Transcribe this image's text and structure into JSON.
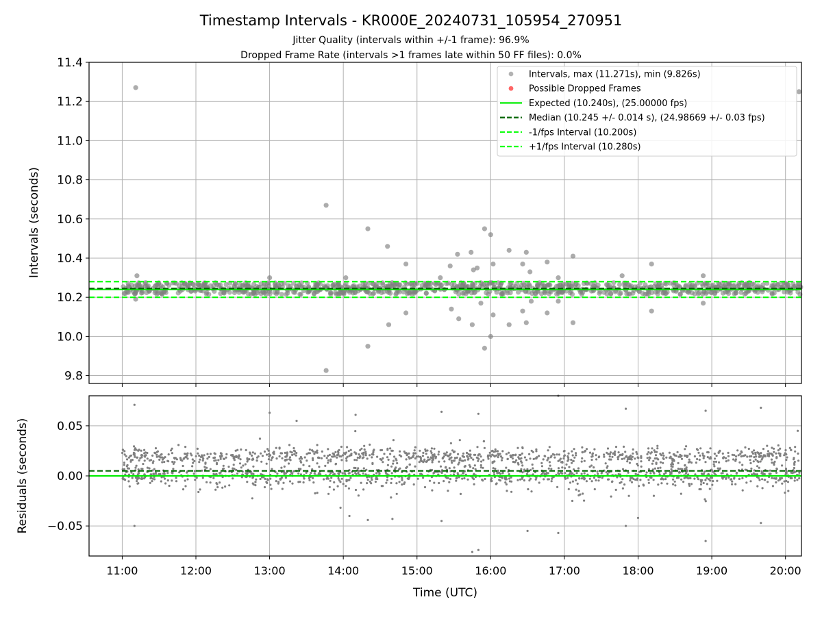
{
  "title": "Timestamp Intervals - KR000E_20240731_105954_270951",
  "subtitle_lines": [
    "Jitter Quality (intervals within +/-1 frame): 96.9%",
    "Dropped Frame Rate (intervals >1 frames late within 50 FF files): 0.0%"
  ],
  "colors": {
    "points": "#808080",
    "dropped": "#ff0000",
    "expected": "#00ee00",
    "median": "#006400",
    "interval": "#00ff00",
    "grid": "#b0b0b0"
  },
  "chart_data": [
    {
      "type": "scatter",
      "panel": "top",
      "ylabel": "Intervals (seconds)",
      "xlim": [
        "10:33",
        "20:13"
      ],
      "ylim": [
        9.76,
        11.4
      ],
      "yticks": [
        9.8,
        10.0,
        10.2,
        10.4,
        10.6,
        10.8,
        11.0,
        11.2,
        11.4
      ],
      "ytick_labels": [
        "9.8",
        "10.0",
        "10.2",
        "10.4",
        "10.6",
        "10.8",
        "11.0",
        "11.2",
        "11.4"
      ],
      "grid": true,
      "legend_position": "top-right",
      "legend": [
        {
          "label": "Intervals, max (11.271s), min (9.826s)",
          "kind": "point",
          "color": "#808080"
        },
        {
          "label": "Possible Dropped Frames",
          "kind": "point",
          "color": "#ff0000"
        },
        {
          "label": "Expected (10.240s), (25.00000 fps)",
          "kind": "line",
          "dash": "solid",
          "color": "#00ee00"
        },
        {
          "label": "Median (10.245 +/- 0.014 s), (24.98669 +/- 0.03 fps)",
          "kind": "line",
          "dash": "dashed",
          "color": "#006400"
        },
        {
          "label": "-1/fps Interval (10.200s)",
          "kind": "line",
          "dash": "dashed",
          "color": "#00ff00"
        },
        {
          "label": "+1/fps Interval (10.280s)",
          "kind": "line",
          "dash": "dashed",
          "color": "#00ff00"
        }
      ],
      "hlines": {
        "expected": 10.24,
        "median": 10.245,
        "minus_fps": 10.2,
        "plus_fps": 10.28
      },
      "band": {
        "center": 10.245,
        "spread": 0.03,
        "from": "11:00",
        "to": "20:13"
      },
      "outliers": [
        {
          "x": "11:11",
          "y": 11.271
        },
        {
          "x": "11:12",
          "y": 10.31
        },
        {
          "x": "11:11",
          "y": 10.19
        },
        {
          "x": "13:00",
          "y": 10.3
        },
        {
          "x": "13:46",
          "y": 10.67
        },
        {
          "x": "13:46",
          "y": 9.826
        },
        {
          "x": "14:20",
          "y": 10.55
        },
        {
          "x": "14:20",
          "y": 9.95
        },
        {
          "x": "14:02",
          "y": 10.3
        },
        {
          "x": "14:36",
          "y": 10.46
        },
        {
          "x": "14:37",
          "y": 10.06
        },
        {
          "x": "14:51",
          "y": 10.37
        },
        {
          "x": "14:51",
          "y": 10.12
        },
        {
          "x": "15:19",
          "y": 10.3
        },
        {
          "x": "15:27",
          "y": 10.36
        },
        {
          "x": "15:28",
          "y": 10.14
        },
        {
          "x": "15:33",
          "y": 10.42
        },
        {
          "x": "15:34",
          "y": 10.09
        },
        {
          "x": "15:45",
          "y": 10.06
        },
        {
          "x": "15:44",
          "y": 10.43
        },
        {
          "x": "15:46",
          "y": 10.34
        },
        {
          "x": "15:49",
          "y": 10.35
        },
        {
          "x": "15:52",
          "y": 10.17
        },
        {
          "x": "15:55",
          "y": 10.55
        },
        {
          "x": "15:55",
          "y": 9.94
        },
        {
          "x": "16:00",
          "y": 10.52
        },
        {
          "x": "16:00",
          "y": 10.0
        },
        {
          "x": "16:02",
          "y": 10.37
        },
        {
          "x": "16:02",
          "y": 10.11
        },
        {
          "x": "16:15",
          "y": 10.44
        },
        {
          "x": "16:15",
          "y": 10.06
        },
        {
          "x": "16:26",
          "y": 10.37
        },
        {
          "x": "16:26",
          "y": 10.13
        },
        {
          "x": "16:29",
          "y": 10.43
        },
        {
          "x": "16:29",
          "y": 10.07
        },
        {
          "x": "16:32",
          "y": 10.33
        },
        {
          "x": "16:33",
          "y": 10.18
        },
        {
          "x": "16:46",
          "y": 10.38
        },
        {
          "x": "16:46",
          "y": 10.12
        },
        {
          "x": "16:55",
          "y": 10.3
        },
        {
          "x": "16:55",
          "y": 10.18
        },
        {
          "x": "17:07",
          "y": 10.41
        },
        {
          "x": "17:07",
          "y": 10.07
        },
        {
          "x": "17:47",
          "y": 10.31
        },
        {
          "x": "18:11",
          "y": 10.37
        },
        {
          "x": "18:11",
          "y": 10.13
        },
        {
          "x": "18:53",
          "y": 10.31
        },
        {
          "x": "18:53",
          "y": 10.17
        },
        {
          "x": "20:11",
          "y": 11.25
        }
      ]
    },
    {
      "type": "scatter",
      "panel": "bottom",
      "xlabel": "Time (UTC)",
      "ylabel": "Residuals (seconds)",
      "xlim": [
        "10:33",
        "20:13"
      ],
      "ylim": [
        -0.08,
        0.08
      ],
      "yticks": [
        -0.05,
        0.0,
        0.05
      ],
      "ytick_labels": [
        "−0.05",
        "0.00",
        "0.05"
      ],
      "xticks": [
        "11:00",
        "12:00",
        "13:00",
        "14:00",
        "15:00",
        "16:00",
        "17:00",
        "18:00",
        "19:00",
        "20:00"
      ],
      "grid": true,
      "hlines": {
        "expected": 0.0,
        "median": 0.005
      },
      "residual_bands": [
        {
          "center": 0.02,
          "spread": 0.008,
          "share": 0.4
        },
        {
          "center": 0.0,
          "spread": 0.008,
          "share": 0.35
        },
        {
          "center": 0.005,
          "spread": 0.025,
          "share": 0.25
        }
      ],
      "outliers": [
        {
          "x": "11:10",
          "y": 0.071
        },
        {
          "x": "11:10",
          "y": -0.05
        },
        {
          "x": "13:00",
          "y": 0.063
        },
        {
          "x": "13:22",
          "y": 0.055
        },
        {
          "x": "14:10",
          "y": 0.061
        },
        {
          "x": "14:20",
          "y": -0.044
        },
        {
          "x": "14:05",
          "y": -0.04
        },
        {
          "x": "14:40",
          "y": -0.043
        },
        {
          "x": "15:20",
          "y": 0.064
        },
        {
          "x": "15:20",
          "y": -0.045
        },
        {
          "x": "15:45",
          "y": -0.076
        },
        {
          "x": "15:50",
          "y": -0.074
        },
        {
          "x": "15:50",
          "y": 0.062
        },
        {
          "x": "16:30",
          "y": -0.055
        },
        {
          "x": "16:55",
          "y": 0.08
        },
        {
          "x": "16:55",
          "y": -0.057
        },
        {
          "x": "17:50",
          "y": 0.067
        },
        {
          "x": "17:50",
          "y": -0.05
        },
        {
          "x": "18:00",
          "y": -0.042
        },
        {
          "x": "18:55",
          "y": 0.065
        },
        {
          "x": "18:55",
          "y": -0.065
        },
        {
          "x": "19:40",
          "y": 0.068
        },
        {
          "x": "19:40",
          "y": -0.047
        },
        {
          "x": "20:10",
          "y": 0.045
        }
      ]
    }
  ]
}
